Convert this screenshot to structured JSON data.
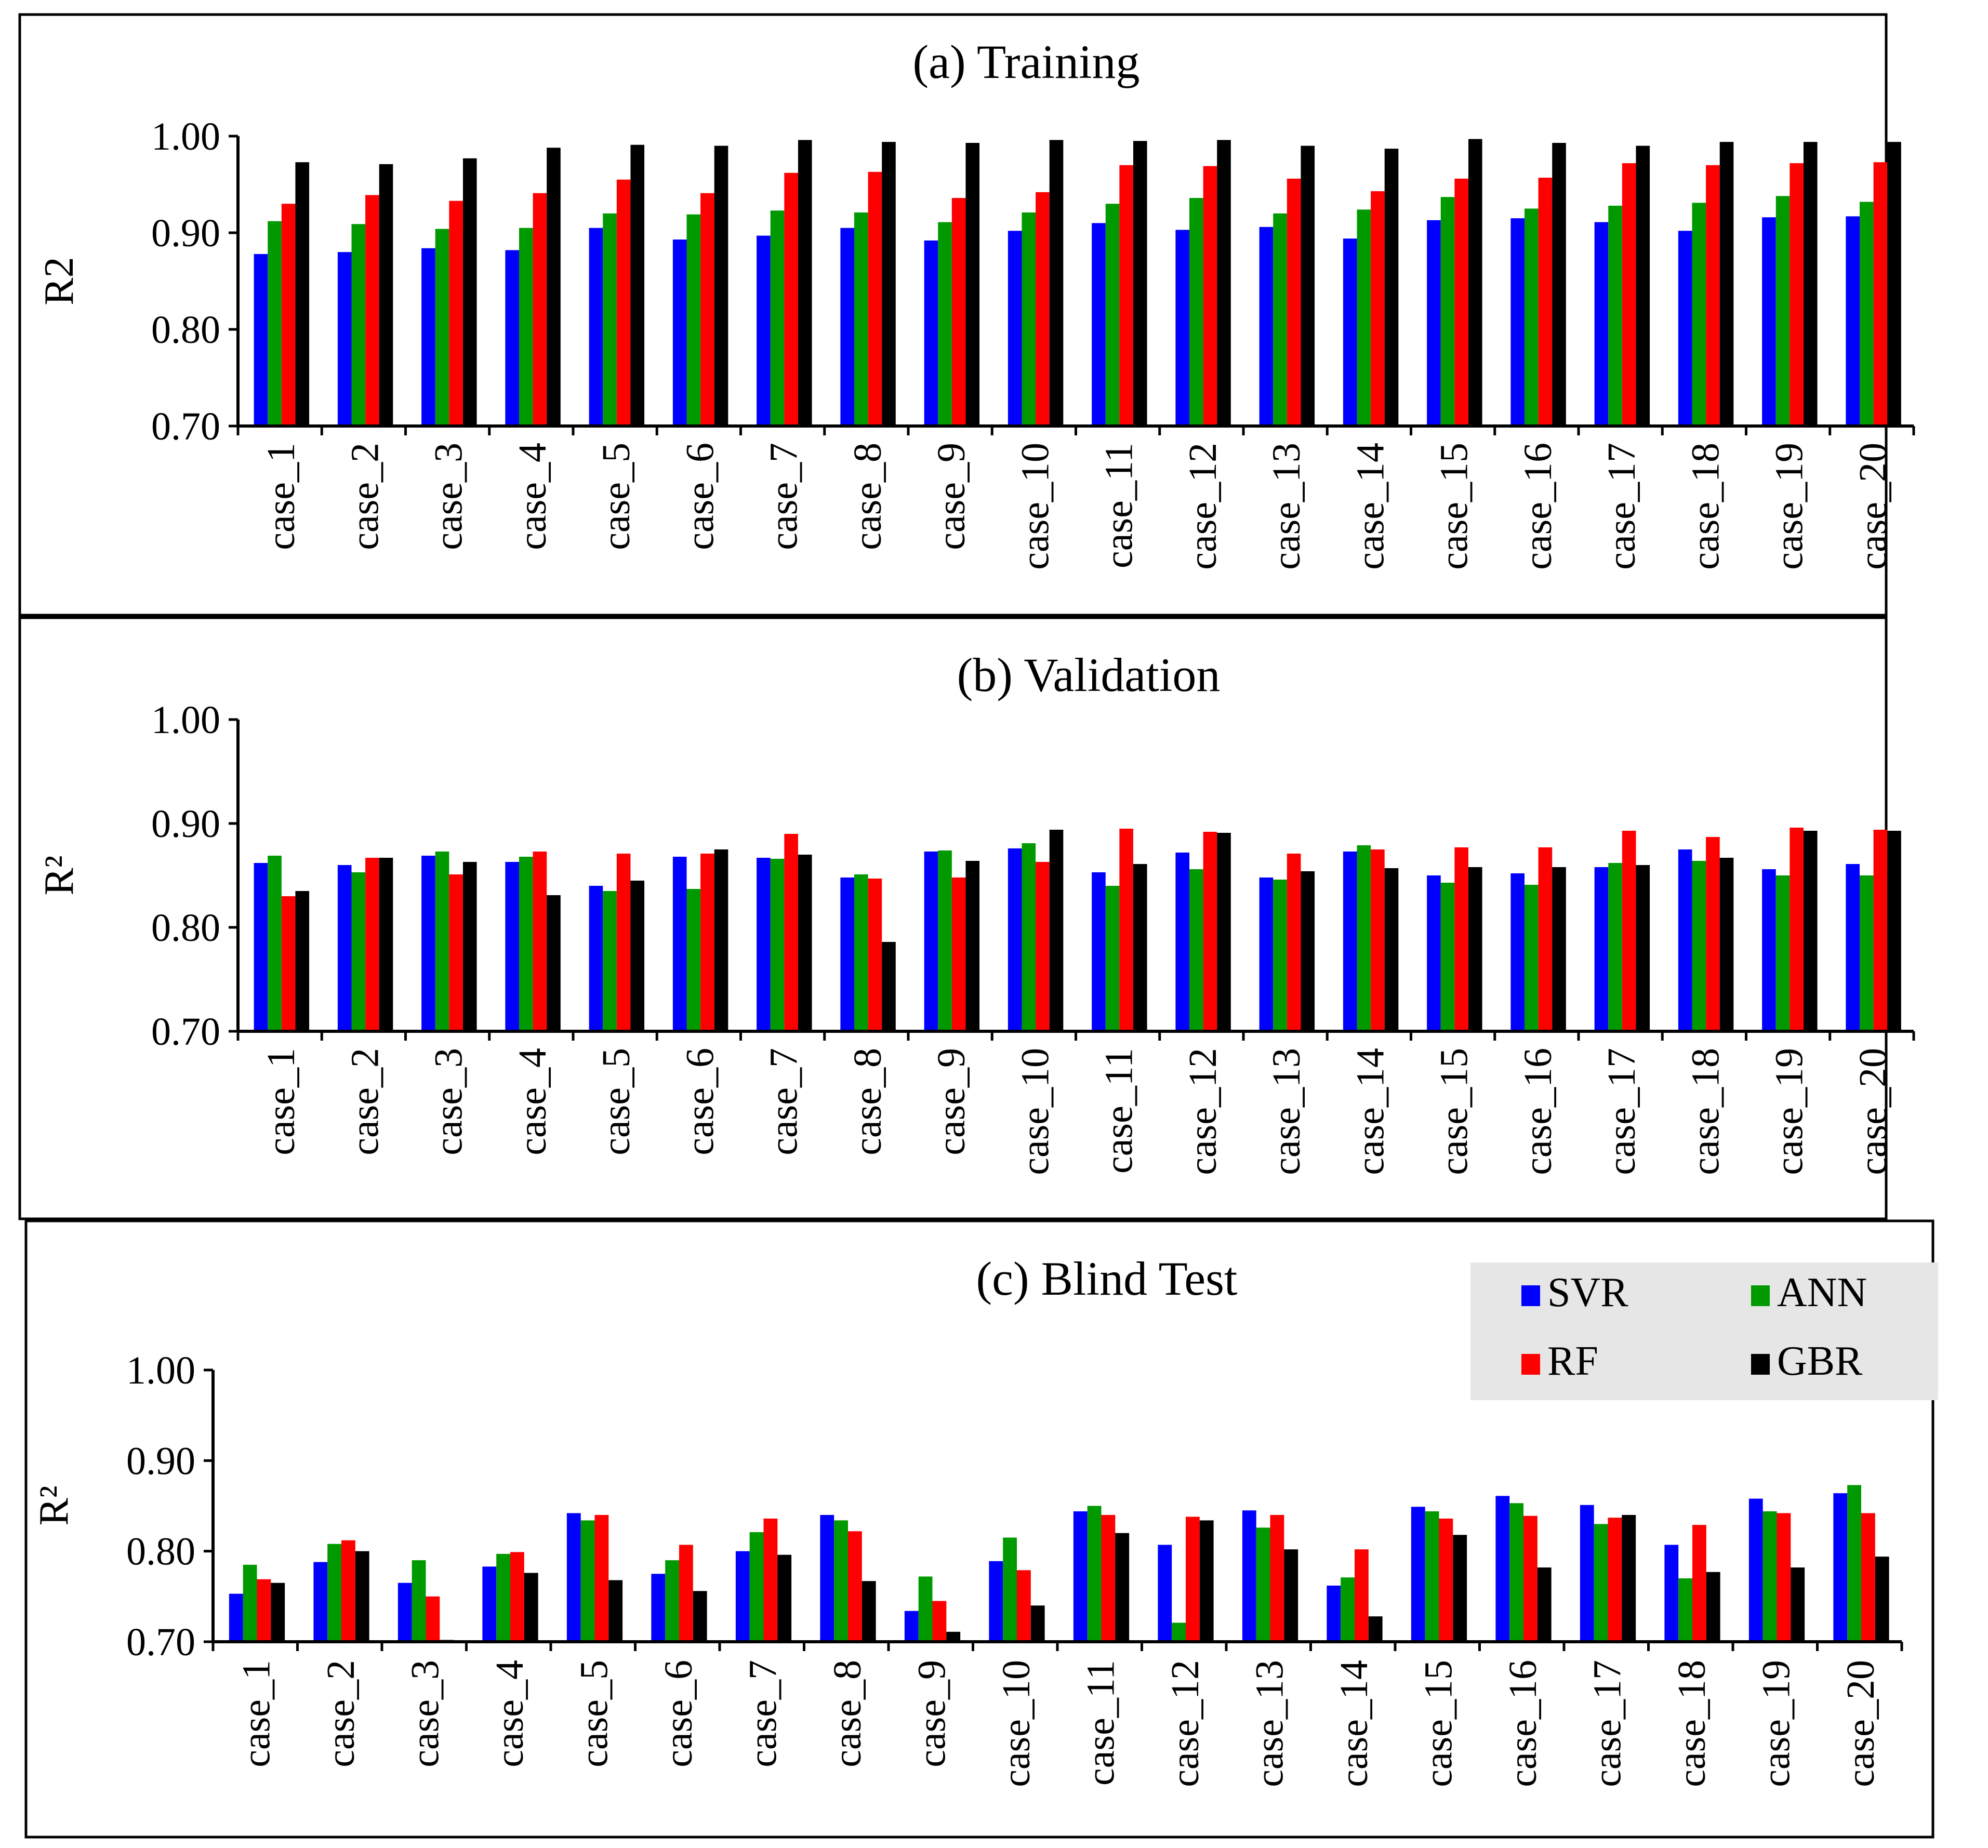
{
  "chart_data": [
    {
      "type": "bar",
      "title": "(a) Training",
      "ylabel": "R2",
      "ylim": [
        0.7,
        1.0
      ],
      "yticks": [
        "0.70",
        "0.80",
        "0.90",
        "1.00"
      ],
      "categories": [
        "case_1",
        "case_2",
        "case_3",
        "case_4",
        "case_5",
        "case_6",
        "case_7",
        "case_8",
        "case_9",
        "case_10",
        "case_11",
        "case_12",
        "case_13",
        "case_14",
        "case_15",
        "case_16",
        "case_17",
        "case_18",
        "case_19",
        "case_20"
      ],
      "series": [
        {
          "name": "SVR",
          "color": "#0000ff",
          "values": [
            0.878,
            0.88,
            0.884,
            0.882,
            0.905,
            0.893,
            0.897,
            0.905,
            0.892,
            0.902,
            0.91,
            0.903,
            0.906,
            0.894,
            0.913,
            0.915,
            0.911,
            0.902,
            0.916,
            0.917
          ]
        },
        {
          "name": "ANN",
          "color": "#009900",
          "values": [
            0.912,
            0.909,
            0.904,
            0.905,
            0.92,
            0.919,
            0.923,
            0.921,
            0.911,
            0.921,
            0.93,
            0.936,
            0.92,
            0.924,
            0.937,
            0.925,
            0.928,
            0.931,
            0.938,
            0.932
          ]
        },
        {
          "name": "RF",
          "color": "#ff0000",
          "values": [
            0.93,
            0.939,
            0.933,
            0.941,
            0.955,
            0.941,
            0.962,
            0.963,
            0.936,
            0.942,
            0.97,
            0.969,
            0.956,
            0.943,
            0.956,
            0.957,
            0.972,
            0.97,
            0.972,
            0.973
          ]
        },
        {
          "name": "GBR",
          "color": "#000000",
          "values": [
            0.973,
            0.971,
            0.977,
            0.988,
            0.991,
            0.99,
            0.996,
            0.994,
            0.993,
            0.996,
            0.995,
            0.996,
            0.99,
            0.987,
            0.997,
            0.993,
            0.99,
            0.994,
            0.994,
            0.994
          ]
        }
      ]
    },
    {
      "type": "bar",
      "title": "(b) Validation",
      "ylabel": "R²",
      "ylim": [
        0.7,
        1.0
      ],
      "yticks": [
        "0.70",
        "0.80",
        "0.90",
        "1.00"
      ],
      "categories": [
        "case_1",
        "case_2",
        "case_3",
        "case_4",
        "case_5",
        "case_6",
        "case_7",
        "case_8",
        "case_9",
        "case_10",
        "case_11",
        "case_12",
        "case_13",
        "case_14",
        "case_15",
        "case_16",
        "case_17",
        "case_18",
        "case_19",
        "case_20"
      ],
      "series": [
        {
          "name": "SVR",
          "color": "#0000ff",
          "values": [
            0.862,
            0.86,
            0.869,
            0.863,
            0.84,
            0.868,
            0.867,
            0.848,
            0.873,
            0.876,
            0.853,
            0.872,
            0.848,
            0.873,
            0.85,
            0.852,
            0.858,
            0.875,
            0.856,
            0.861
          ]
        },
        {
          "name": "ANN",
          "color": "#009900",
          "values": [
            0.869,
            0.853,
            0.873,
            0.868,
            0.835,
            0.837,
            0.866,
            0.851,
            0.874,
            0.881,
            0.84,
            0.856,
            0.846,
            0.879,
            0.843,
            0.841,
            0.862,
            0.864,
            0.85,
            0.85
          ]
        },
        {
          "name": "RF",
          "color": "#ff0000",
          "values": [
            0.83,
            0.867,
            0.851,
            0.873,
            0.871,
            0.871,
            0.89,
            0.847,
            0.848,
            0.863,
            0.895,
            0.892,
            0.871,
            0.875,
            0.877,
            0.877,
            0.893,
            0.887,
            0.896,
            0.894
          ]
        },
        {
          "name": "GBR",
          "color": "#000000",
          "values": [
            0.835,
            0.867,
            0.863,
            0.831,
            0.845,
            0.875,
            0.87,
            0.786,
            0.864,
            0.894,
            0.861,
            0.891,
            0.854,
            0.857,
            0.858,
            0.858,
            0.86,
            0.867,
            0.893,
            0.893
          ]
        }
      ]
    },
    {
      "type": "bar",
      "title": "(c) Blind Test",
      "ylabel": "R²",
      "ylim": [
        0.7,
        1.0
      ],
      "yticks": [
        "0.70",
        "0.80",
        "0.90",
        "1.00"
      ],
      "legend_position": "top-right",
      "categories": [
        "case_1",
        "case_2",
        "case_3",
        "case_4",
        "case_5",
        "case_6",
        "case_7",
        "case_8",
        "case_9",
        "case_10",
        "case_11",
        "case_12",
        "case_13",
        "case_14",
        "case_15",
        "case_16",
        "case_17",
        "case_18",
        "case_19",
        "case_20"
      ],
      "series": [
        {
          "name": "SVR",
          "color": "#0000ff",
          "values": [
            0.753,
            0.788,
            0.765,
            0.783,
            0.842,
            0.775,
            0.8,
            0.84,
            0.734,
            0.789,
            0.844,
            0.807,
            0.845,
            0.762,
            0.849,
            0.861,
            0.851,
            0.807,
            0.858,
            0.864
          ]
        },
        {
          "name": "ANN",
          "color": "#009900",
          "values": [
            0.785,
            0.808,
            0.79,
            0.797,
            0.834,
            0.79,
            0.821,
            0.834,
            0.772,
            0.815,
            0.85,
            0.721,
            0.826,
            0.771,
            0.844,
            0.853,
            0.83,
            0.77,
            0.844,
            0.873
          ]
        },
        {
          "name": "RF",
          "color": "#ff0000",
          "values": [
            0.769,
            0.812,
            0.75,
            0.799,
            0.84,
            0.807,
            0.836,
            0.822,
            0.745,
            0.779,
            0.84,
            0.838,
            0.84,
            0.802,
            0.836,
            0.839,
            0.837,
            0.829,
            0.842,
            0.842
          ]
        },
        {
          "name": "GBR",
          "color": "#000000",
          "values": [
            0.765,
            0.8,
            0.702,
            0.776,
            0.768,
            0.756,
            0.796,
            0.767,
            0.711,
            0.74,
            0.82,
            0.834,
            0.802,
            0.728,
            0.818,
            0.782,
            0.84,
            0.777,
            0.782,
            0.794
          ]
        }
      ]
    }
  ]
}
